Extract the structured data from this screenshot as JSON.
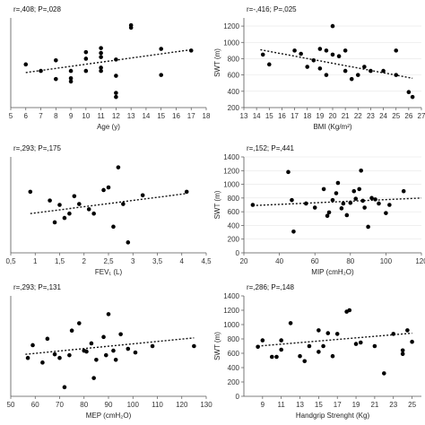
{
  "colors": {
    "point": "#000000",
    "trend": "#111111",
    "axis": "#555555",
    "grid": "#e6e6e6"
  },
  "chart_data": [
    {
      "type": "scatter",
      "stat": "r=,408; P=,028",
      "xlabel": "Age (y)",
      "ylabel": "",
      "xlim": [
        5,
        18
      ],
      "ylim": [
        200,
        1300
      ],
      "xticks": [
        5,
        6,
        7,
        8,
        9,
        10,
        11,
        12,
        13,
        14,
        15,
        16,
        17,
        18
      ],
      "yticks": [],
      "grid": true,
      "points": [
        [
          6,
          730
        ],
        [
          7,
          650
        ],
        [
          8,
          780
        ],
        [
          8,
          550
        ],
        [
          9,
          650
        ],
        [
          9,
          560
        ],
        [
          9,
          520
        ],
        [
          10,
          880
        ],
        [
          10,
          800
        ],
        [
          10,
          650
        ],
        [
          11,
          930
        ],
        [
          11,
          870
        ],
        [
          11,
          820
        ],
        [
          11,
          690
        ],
        [
          11,
          650
        ],
        [
          12,
          790
        ],
        [
          12,
          590
        ],
        [
          12,
          380
        ],
        [
          12,
          330
        ],
        [
          13,
          1210
        ],
        [
          13,
          1180
        ],
        [
          15,
          920
        ],
        [
          15,
          600
        ],
        [
          17,
          900
        ]
      ],
      "trend": [
        [
          6,
          630
        ],
        [
          17,
          910
        ]
      ]
    },
    {
      "type": "scatter",
      "stat": "r=-,416; P=,025",
      "xlabel": "BMI (Kg/m²)",
      "ylabel": "SWT (m)",
      "xlim": [
        13,
        27
      ],
      "ylim": [
        200,
        1300
      ],
      "xticks": [
        13,
        14,
        15,
        16,
        17,
        18,
        19,
        20,
        21,
        22,
        23,
        24,
        25,
        26,
        27
      ],
      "yticks": [
        200,
        400,
        600,
        800,
        1000,
        1200
      ],
      "grid": true,
      "points": [
        [
          14.5,
          850
        ],
        [
          15,
          730
        ],
        [
          17,
          900
        ],
        [
          17.5,
          860
        ],
        [
          18,
          700
        ],
        [
          18.5,
          780
        ],
        [
          19,
          920
        ],
        [
          19,
          680
        ],
        [
          19.5,
          900
        ],
        [
          19.5,
          600
        ],
        [
          20,
          1200
        ],
        [
          20,
          850
        ],
        [
          20.5,
          830
        ],
        [
          21,
          900
        ],
        [
          21,
          650
        ],
        [
          21.5,
          550
        ],
        [
          22,
          600
        ],
        [
          22.5,
          700
        ],
        [
          23,
          650
        ],
        [
          24,
          650
        ],
        [
          25,
          900
        ],
        [
          25,
          600
        ],
        [
          26,
          390
        ],
        [
          26.3,
          330
        ]
      ],
      "trend": [
        [
          14.3,
          910
        ],
        [
          26.3,
          560
        ]
      ]
    },
    {
      "type": "scatter",
      "stat": "r=,293; P=,175",
      "xlabel": "FEV₁ (L)",
      "ylabel": "",
      "xlim": [
        0.5,
        4.5
      ],
      "ylim": [
        200,
        1300
      ],
      "xticks": [
        0.5,
        1,
        1.5,
        2,
        2.5,
        3,
        3.5,
        4,
        4.5
      ],
      "xtick_labels": [
        "0,5",
        "1",
        "1,5",
        "2",
        "2,5",
        "3",
        "3,5",
        "4",
        "4,5"
      ],
      "yticks": [],
      "grid": false,
      "points": [
        [
          0.9,
          900
        ],
        [
          1.3,
          800
        ],
        [
          1.4,
          550
        ],
        [
          1.5,
          750
        ],
        [
          1.6,
          600
        ],
        [
          1.7,
          650
        ],
        [
          1.8,
          850
        ],
        [
          1.9,
          760
        ],
        [
          2.1,
          700
        ],
        [
          2.2,
          650
        ],
        [
          2.4,
          920
        ],
        [
          2.5,
          950
        ],
        [
          2.6,
          500
        ],
        [
          2.7,
          1180
        ],
        [
          2.8,
          760
        ],
        [
          2.9,
          320
        ],
        [
          3.2,
          860
        ],
        [
          4.1,
          900
        ]
      ],
      "trend": [
        [
          0.9,
          650
        ],
        [
          4.1,
          880
        ]
      ]
    },
    {
      "type": "scatter",
      "stat": "r=,152; P=,441",
      "xlabel": "MIP (cmH₂O)",
      "ylabel": "SWT (m)",
      "xlim": [
        20,
        120
      ],
      "ylim": [
        0,
        1400
      ],
      "xticks": [
        20,
        40,
        60,
        80,
        100,
        120
      ],
      "yticks": [
        0,
        200,
        400,
        600,
        800,
        1000,
        1200,
        1400
      ],
      "grid": true,
      "points": [
        [
          25,
          700
        ],
        [
          45,
          1180
        ],
        [
          47,
          770
        ],
        [
          48,
          310
        ],
        [
          55,
          720
        ],
        [
          60,
          660
        ],
        [
          65,
          930
        ],
        [
          67,
          540
        ],
        [
          68,
          590
        ],
        [
          70,
          770
        ],
        [
          72,
          870
        ],
        [
          73,
          1020
        ],
        [
          75,
          650
        ],
        [
          76,
          720
        ],
        [
          78,
          550
        ],
        [
          80,
          730
        ],
        [
          82,
          900
        ],
        [
          83,
          790
        ],
        [
          85,
          930
        ],
        [
          86,
          1200
        ],
        [
          87,
          760
        ],
        [
          88,
          660
        ],
        [
          90,
          380
        ],
        [
          92,
          800
        ],
        [
          94,
          780
        ],
        [
          96,
          720
        ],
        [
          100,
          580
        ],
        [
          102,
          700
        ],
        [
          110,
          900
        ]
      ],
      "trend": [
        [
          25,
          690
        ],
        [
          120,
          800
        ]
      ]
    },
    {
      "type": "scatter",
      "stat": "r=,293; P=,131",
      "xlabel": "MEP (cmH₂O)",
      "ylabel": "",
      "xlim": [
        50,
        130
      ],
      "ylim": [
        200,
        1300
      ],
      "xticks": [
        50,
        60,
        70,
        80,
        90,
        100,
        110,
        120,
        130
      ],
      "yticks": [],
      "grid": true,
      "points": [
        [
          57,
          620
        ],
        [
          59,
          760
        ],
        [
          63,
          570
        ],
        [
          65,
          830
        ],
        [
          68,
          660
        ],
        [
          70,
          620
        ],
        [
          72,
          300
        ],
        [
          74,
          650
        ],
        [
          75,
          920
        ],
        [
          78,
          1000
        ],
        [
          80,
          700
        ],
        [
          81,
          690
        ],
        [
          83,
          780
        ],
        [
          84,
          400
        ],
        [
          85,
          600
        ],
        [
          88,
          850
        ],
        [
          89,
          650
        ],
        [
          90,
          1100
        ],
        [
          92,
          700
        ],
        [
          93,
          600
        ],
        [
          95,
          880
        ],
        [
          98,
          720
        ],
        [
          101,
          680
        ],
        [
          108,
          750
        ],
        [
          125,
          750
        ]
      ],
      "trend": [
        [
          56,
          660
        ],
        [
          125,
          840
        ]
      ]
    },
    {
      "type": "scatter",
      "stat": "r=,286; P=,148",
      "xlabel": "Handgrip Strenght (Kg)",
      "ylabel": "SWT (m)",
      "xlim": [
        7,
        26
      ],
      "ylim": [
        0,
        1400
      ],
      "xticks": [
        9,
        11,
        13,
        15,
        17,
        19,
        21,
        23,
        25
      ],
      "yticks": [
        0,
        200,
        400,
        600,
        800,
        1000,
        1200,
        1400
      ],
      "grid": false,
      "points": [
        [
          8.5,
          690
        ],
        [
          9,
          780
        ],
        [
          10,
          550
        ],
        [
          10.5,
          550
        ],
        [
          11,
          650
        ],
        [
          11,
          780
        ],
        [
          12,
          1020
        ],
        [
          13,
          560
        ],
        [
          13.5,
          490
        ],
        [
          14,
          700
        ],
        [
          15,
          920
        ],
        [
          15,
          620
        ],
        [
          15.5,
          700
        ],
        [
          16,
          880
        ],
        [
          16.5,
          560
        ],
        [
          17,
          870
        ],
        [
          18,
          1180
        ],
        [
          18.3,
          1200
        ],
        [
          19,
          730
        ],
        [
          19.5,
          750
        ],
        [
          21,
          700
        ],
        [
          22,
          320
        ],
        [
          23,
          870
        ],
        [
          24,
          590
        ],
        [
          24,
          640
        ],
        [
          24.5,
          920
        ],
        [
          25,
          760
        ]
      ],
      "trend": [
        [
          8.5,
          700
        ],
        [
          25,
          880
        ]
      ]
    }
  ]
}
